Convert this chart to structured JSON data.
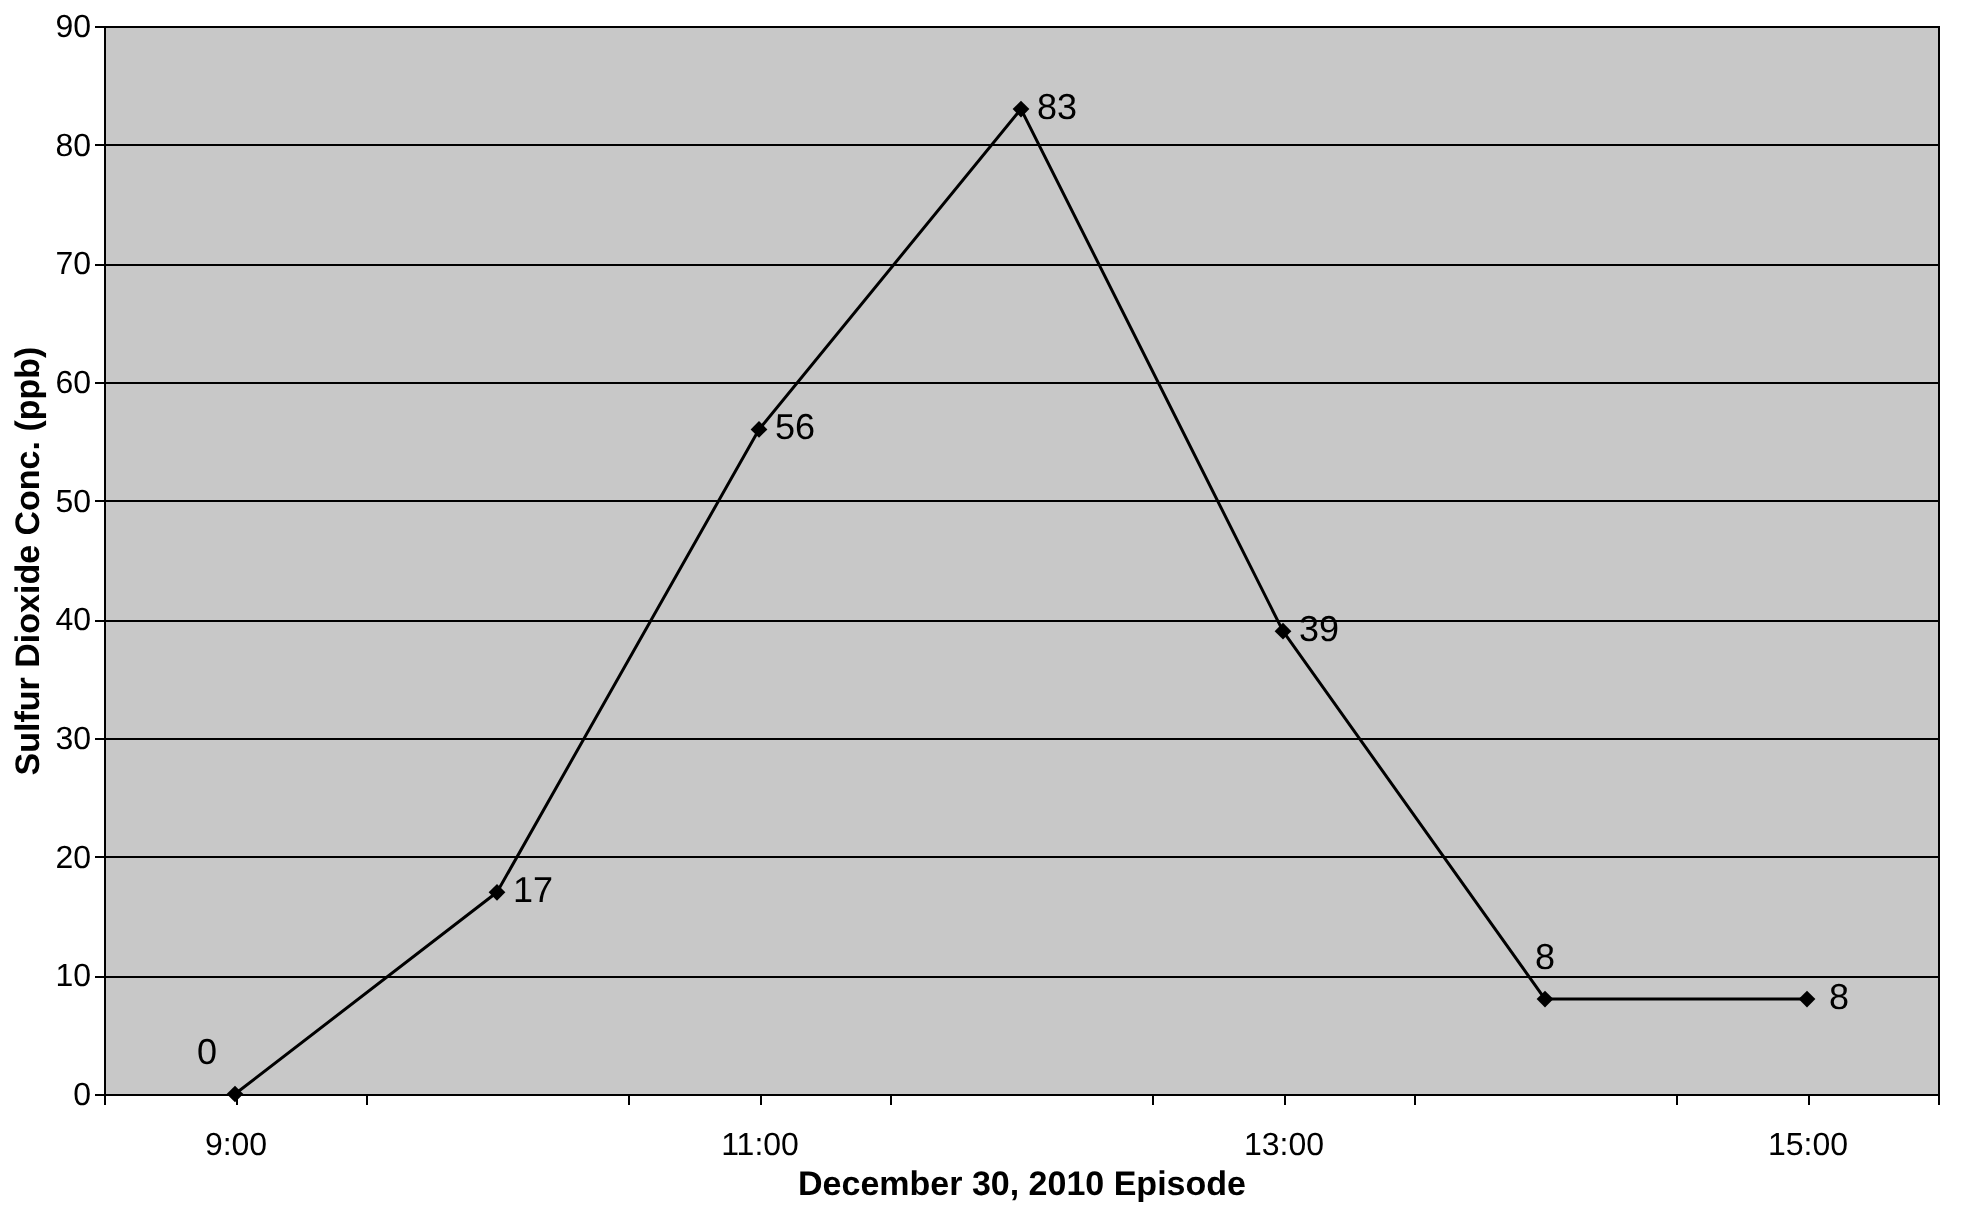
{
  "chart_data": {
    "type": "line",
    "xlabel": "December 30, 2010 Episode",
    "ylabel": "Sulfur Dioxide Conc. (ppb)",
    "x": [
      9,
      10,
      11,
      12,
      13,
      14,
      15
    ],
    "series": [
      {
        "color": "#000000",
        "values": [
          0,
          17,
          56,
          83,
          39,
          8,
          8
        ]
      }
    ],
    "xlim": [
      8.5,
      15.5
    ],
    "xticks": [
      {
        "value": 8.5,
        "label": null
      },
      {
        "value": 9,
        "label": "9:00"
      },
      {
        "value": 9.5,
        "label": null
      },
      {
        "value": 10.5,
        "label": null
      },
      {
        "value": 11,
        "label": "11:00"
      },
      {
        "value": 11.5,
        "label": null
      },
      {
        "value": 12.5,
        "label": null
      },
      {
        "value": 13,
        "label": "13:00"
      },
      {
        "value": 13.5,
        "label": null
      },
      {
        "value": 14.5,
        "label": null
      },
      {
        "value": 15,
        "label": "15:00"
      },
      {
        "value": 15.5,
        "label": null
      }
    ],
    "ylim": [
      0,
      90
    ],
    "yticks": [
      0,
      10,
      20,
      30,
      40,
      50,
      60,
      70,
      80,
      90
    ],
    "grid": "y",
    "legend": false,
    "marker": "diamond",
    "line_style": "solid",
    "data_labels": true
  }
}
